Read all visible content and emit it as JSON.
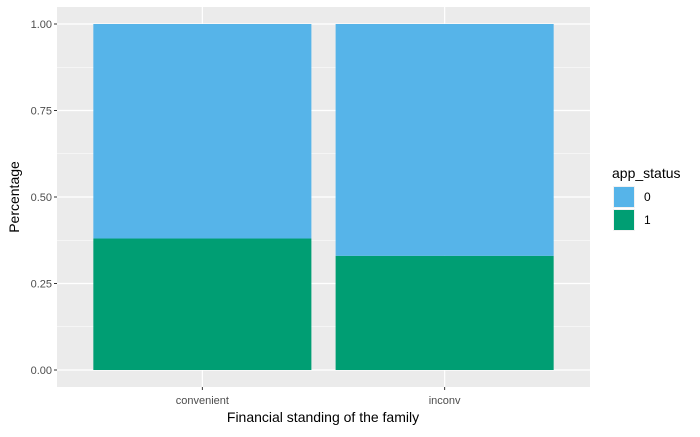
{
  "chart_data": {
    "type": "bar",
    "stacked": true,
    "categories": [
      "convenient",
      "inconv"
    ],
    "series": [
      {
        "name": "0",
        "color": "#56B4E9",
        "values": [
          0.62,
          0.67
        ]
      },
      {
        "name": "1",
        "color": "#009E73",
        "values": [
          0.38,
          0.33
        ]
      }
    ],
    "xlabel": "Financial standing of the family",
    "ylabel": "Percentage",
    "ylim": [
      0,
      1
    ],
    "yticks": [
      0,
      0.25,
      0.5,
      0.75,
      1
    ],
    "ytick_labels": [
      "0.00",
      "0.25",
      "0.50",
      "0.75",
      "1.00"
    ],
    "grid": true,
    "legend": {
      "title": "app_status",
      "position": "right"
    },
    "panel_background": "#EBEBEB",
    "grid_color": "#FFFFFF"
  }
}
